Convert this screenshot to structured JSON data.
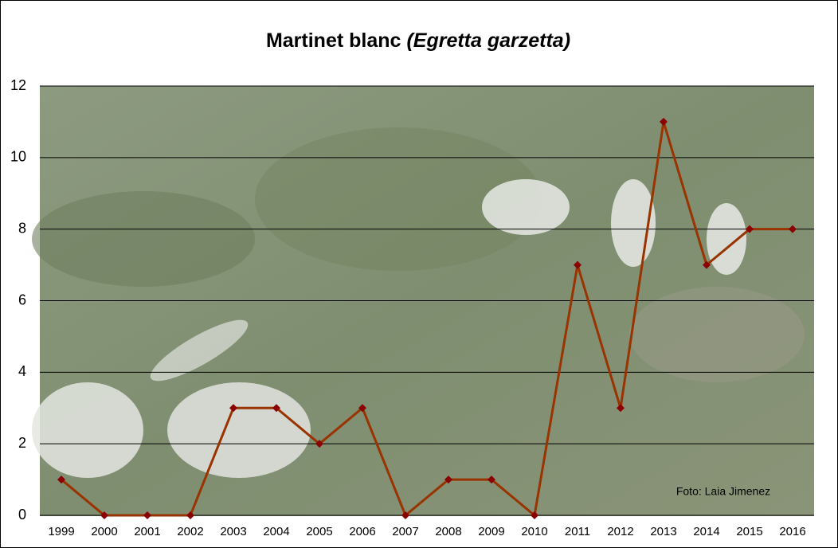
{
  "chart_data": {
    "type": "line",
    "title": "Martinet blanc",
    "title_species": "(Egretta garzetta)",
    "annotation": "Foto: Laia Jimenez",
    "categories": [
      "1999",
      "2000",
      "2001",
      "2002",
      "2003",
      "2004",
      "2005",
      "2006",
      "2007",
      "2008",
      "2009",
      "2010",
      "2011",
      "2012",
      "2013",
      "2014",
      "2015",
      "2016"
    ],
    "series": [
      {
        "name": "Martinet blanc",
        "color": "#993300",
        "marker_color": "#8b0000",
        "values": [
          1,
          0,
          0,
          0,
          3,
          3,
          2,
          3,
          0,
          1,
          1,
          0,
          7,
          3,
          11,
          7,
          8,
          8
        ]
      }
    ],
    "ylim": [
      0,
      12
    ],
    "yticks": [
      0,
      2,
      4,
      6,
      8,
      10,
      12
    ],
    "grid": true
  }
}
